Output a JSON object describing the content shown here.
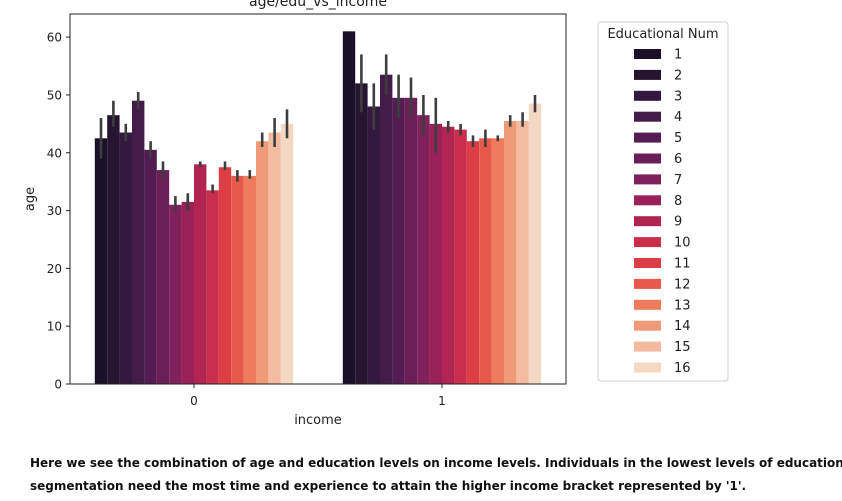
{
  "chart_data": {
    "type": "bar",
    "title": "age/edu_vs_income",
    "xlabel": "income",
    "ylabel": "age",
    "categories": [
      "0",
      "1"
    ],
    "ylim": [
      0,
      64
    ],
    "yticks": [
      0,
      10,
      20,
      30,
      40,
      50,
      60
    ],
    "legend": {
      "title": "Educational Num",
      "position": "outside-right"
    },
    "series": [
      {
        "name": "1",
        "color": "#1a1029",
        "values": [
          42.5,
          61.0
        ],
        "ci": [
          [
            39,
            46
          ],
          [
            61,
            61
          ]
        ]
      },
      {
        "name": "2",
        "color": "#251531",
        "values": [
          46.5,
          52.0
        ],
        "ci": [
          [
            44.5,
            49
          ],
          [
            47,
            57
          ]
        ]
      },
      {
        "name": "3",
        "color": "#33193f",
        "values": [
          43.5,
          48.0
        ],
        "ci": [
          [
            42,
            45
          ],
          [
            44,
            52
          ]
        ]
      },
      {
        "name": "4",
        "color": "#431c4a",
        "values": [
          49.0,
          53.5
        ],
        "ci": [
          [
            47.5,
            50.5
          ],
          [
            50,
            57
          ]
        ]
      },
      {
        "name": "5",
        "color": "#531d53",
        "values": [
          40.5,
          49.5
        ],
        "ci": [
          [
            39,
            42
          ],
          [
            46,
            53.5
          ]
        ]
      },
      {
        "name": "6",
        "color": "#6a1f58",
        "values": [
          37.0,
          49.5
        ],
        "ci": [
          [
            35.5,
            38.5
          ],
          [
            46,
            53
          ]
        ]
      },
      {
        "name": "7",
        "color": "#7f215a",
        "values": [
          31.0,
          46.5
        ],
        "ci": [
          [
            30,
            32.5
          ],
          [
            43,
            50
          ]
        ]
      },
      {
        "name": "8",
        "color": "#9a2259",
        "values": [
          31.5,
          45.0
        ],
        "ci": [
          [
            30,
            33
          ],
          [
            40,
            49.5
          ]
        ]
      },
      {
        "name": "9",
        "color": "#b22553",
        "values": [
          38.0,
          44.5
        ],
        "ci": [
          [
            37.5,
            38.5
          ],
          [
            43.5,
            45.5
          ]
        ]
      },
      {
        "name": "10",
        "color": "#ca2e4c",
        "values": [
          33.5,
          44.0
        ],
        "ci": [
          [
            33,
            34.5
          ],
          [
            43,
            45
          ]
        ]
      },
      {
        "name": "11",
        "color": "#dd3e45",
        "values": [
          37.5,
          42.0
        ],
        "ci": [
          [
            37,
            38.5
          ],
          [
            41,
            43
          ]
        ]
      },
      {
        "name": "12",
        "color": "#e7594a",
        "values": [
          36.0,
          42.5
        ],
        "ci": [
          [
            35,
            37
          ],
          [
            41,
            44
          ]
        ]
      },
      {
        "name": "13",
        "color": "#ee7b5b",
        "values": [
          36.0,
          42.5
        ],
        "ci": [
          [
            35.5,
            37
          ],
          [
            42,
            43
          ]
        ]
      },
      {
        "name": "14",
        "color": "#f09b78",
        "values": [
          42.0,
          45.5
        ],
        "ci": [
          [
            41,
            43.5
          ],
          [
            44.5,
            46.5
          ]
        ]
      },
      {
        "name": "15",
        "color": "#f3bb9f",
        "values": [
          43.5,
          45.5
        ],
        "ci": [
          [
            41,
            46
          ],
          [
            44.5,
            47
          ]
        ]
      },
      {
        "name": "16",
        "color": "#f5d8c3",
        "values": [
          45.0,
          48.5
        ],
        "ci": [
          [
            42.5,
            47.5
          ],
          [
            47,
            50
          ]
        ]
      }
    ]
  },
  "caption": {
    "line1": "Here we see the combination of age and education levels on income levels. Individuals in the lowest levels of educational",
    "line2": "segmentation need the most time and experience to attain the higher income bracket represented by '1'."
  }
}
